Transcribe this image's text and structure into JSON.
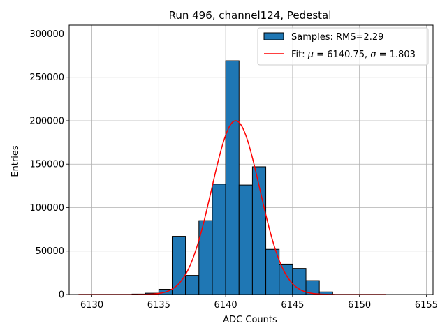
{
  "chart_data": {
    "type": "bar",
    "title": "Run 496, channel124, Pedestal",
    "xlabel": "ADC Counts",
    "ylabel": "Entries",
    "xlim": [
      6128.3,
      6155.5
    ],
    "ylim": [
      0,
      310000
    ],
    "grid": true,
    "legend_position": "top-right",
    "x_ticks": [
      6130,
      6135,
      6140,
      6145,
      6150,
      6155
    ],
    "x_tick_labels": [
      "6130",
      "6135",
      "6140",
      "6145",
      "6150",
      "6155"
    ],
    "y_ticks": [
      0,
      50000,
      100000,
      150000,
      200000,
      250000,
      300000
    ],
    "y_tick_labels": [
      "0",
      "50000",
      "100000",
      "150000",
      "200000",
      "250000",
      "300000"
    ],
    "histogram": {
      "name": "Samples: RMS=2.29",
      "color": "#1f77b4",
      "edge_color": "#000000",
      "bins": [
        {
          "start": 6133.0,
          "end": 6134.0,
          "value": 500
        },
        {
          "start": 6134.0,
          "end": 6135.0,
          "value": 1500
        },
        {
          "start": 6135.0,
          "end": 6136.0,
          "value": 6000
        },
        {
          "start": 6136.0,
          "end": 6137.0,
          "value": 67000
        },
        {
          "start": 6137.0,
          "end": 6138.0,
          "value": 22000
        },
        {
          "start": 6138.0,
          "end": 6139.0,
          "value": 85000
        },
        {
          "start": 6139.0,
          "end": 6140.0,
          "value": 127000
        },
        {
          "start": 6140.0,
          "end": 6141.0,
          "value": 269000
        },
        {
          "start": 6141.0,
          "end": 6142.0,
          "value": 126000
        },
        {
          "start": 6142.0,
          "end": 6143.0,
          "value": 147000
        },
        {
          "start": 6143.0,
          "end": 6144.0,
          "value": 52000
        },
        {
          "start": 6144.0,
          "end": 6145.0,
          "value": 35000
        },
        {
          "start": 6145.0,
          "end": 6146.0,
          "value": 30000
        },
        {
          "start": 6146.0,
          "end": 6147.0,
          "value": 16000
        },
        {
          "start": 6147.0,
          "end": 6148.0,
          "value": 3000
        }
      ]
    },
    "fit": {
      "name_prefix": "Fit: ",
      "mu_symbol": "μ",
      "mu_text": " = 6140.75, ",
      "sigma_symbol": "σ",
      "sigma_text": " = 1.803",
      "color": "#ff0000",
      "mu": 6140.75,
      "sigma": 1.803,
      "amplitude": 200000,
      "x_range": [
        6129.0,
        6152.0
      ]
    }
  }
}
